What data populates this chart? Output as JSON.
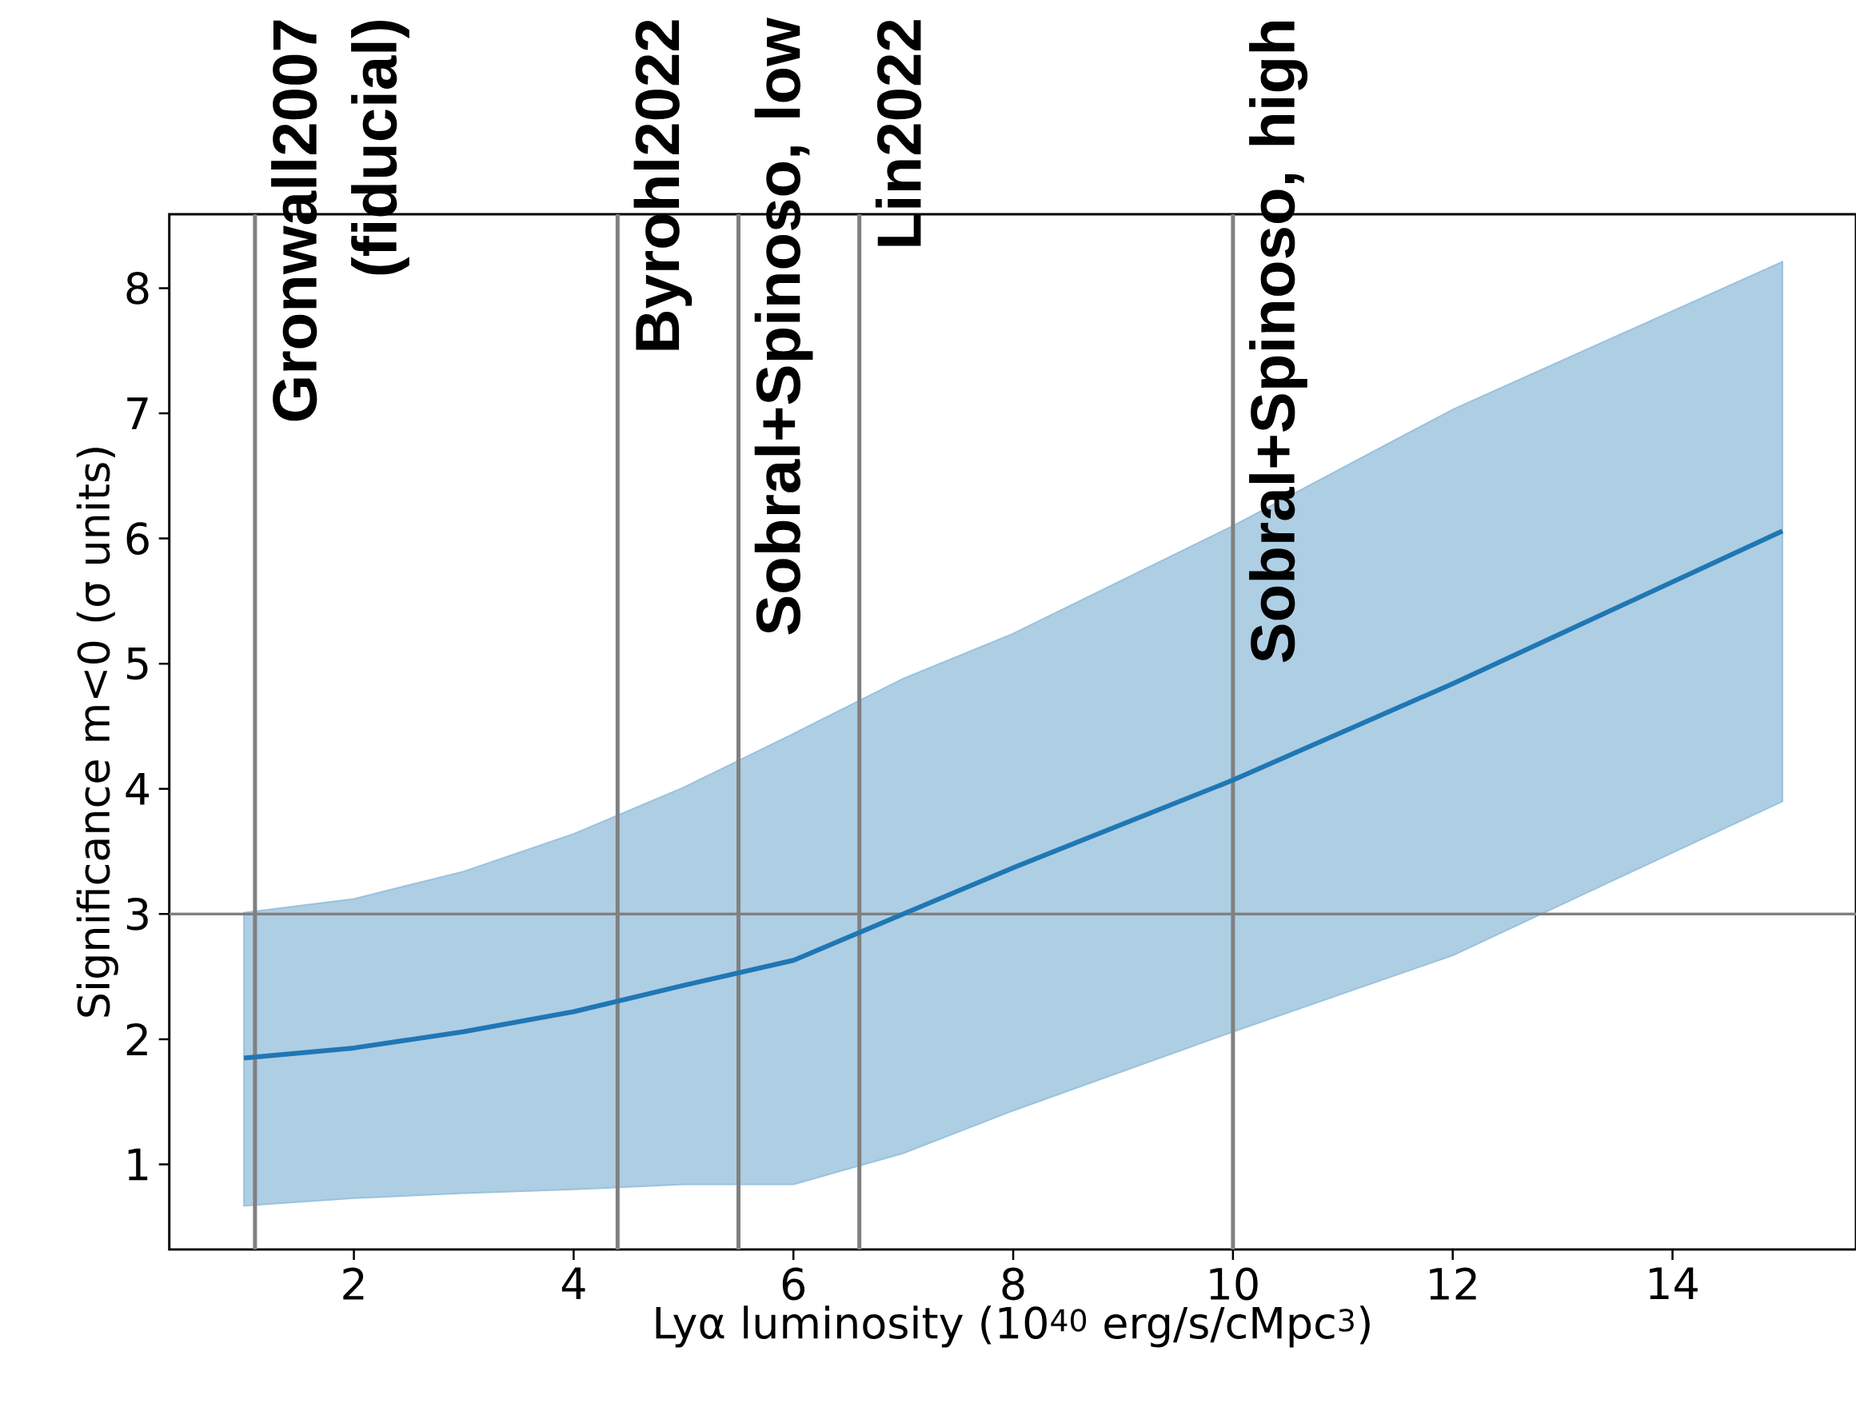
{
  "chart_data": {
    "type": "line",
    "xlabel": "Lyα luminosity (10$^{40}$ erg/s/cMpc$^{3}$)",
    "ylabel": "Significance m<0 (σ units)",
    "x": [
      1,
      2,
      3,
      4,
      5,
      6,
      7,
      8,
      10,
      12,
      15
    ],
    "series": [
      {
        "color": "#1f77b4",
        "values": [
          1.85,
          1.93,
          2.06,
          2.22,
          2.43,
          2.63,
          3.0,
          3.37,
          4.07,
          4.84,
          6.06
        ],
        "lower": [
          0.67,
          0.73,
          0.77,
          0.8,
          0.84,
          0.84,
          1.09,
          1.43,
          2.06,
          2.67,
          3.9
        ],
        "upper": [
          3.01,
          3.12,
          3.34,
          3.64,
          4.01,
          4.44,
          4.88,
          5.24,
          6.1,
          7.03,
          8.21
        ]
      }
    ],
    "xlim": [
      0.32,
      15.67
    ],
    "ylim": [
      0.32,
      8.59
    ],
    "xticks": [
      2,
      4,
      6,
      8,
      10,
      12,
      14
    ],
    "yticks": [
      1,
      2,
      3,
      4,
      5,
      6,
      7,
      8
    ],
    "ref_lines": [
      {
        "axis": "x",
        "value": 1.1,
        "label": "Gronwall2007 (fiducial)",
        "color": "#808080"
      },
      {
        "axis": "x",
        "value": 4.4,
        "label": "Byrohl2022",
        "color": "#808080"
      },
      {
        "axis": "x",
        "value": 5.5,
        "label": "Sobral+Spinoso, low",
        "color": "#808080"
      },
      {
        "axis": "x",
        "value": 6.6,
        "label": "Lin2022",
        "color": "#808080"
      },
      {
        "axis": "x",
        "value": 10,
        "label": "Sobral+Spinoso, high",
        "color": "#808080"
      },
      {
        "axis": "y",
        "value": 3,
        "color": "#808080"
      }
    ]
  }
}
